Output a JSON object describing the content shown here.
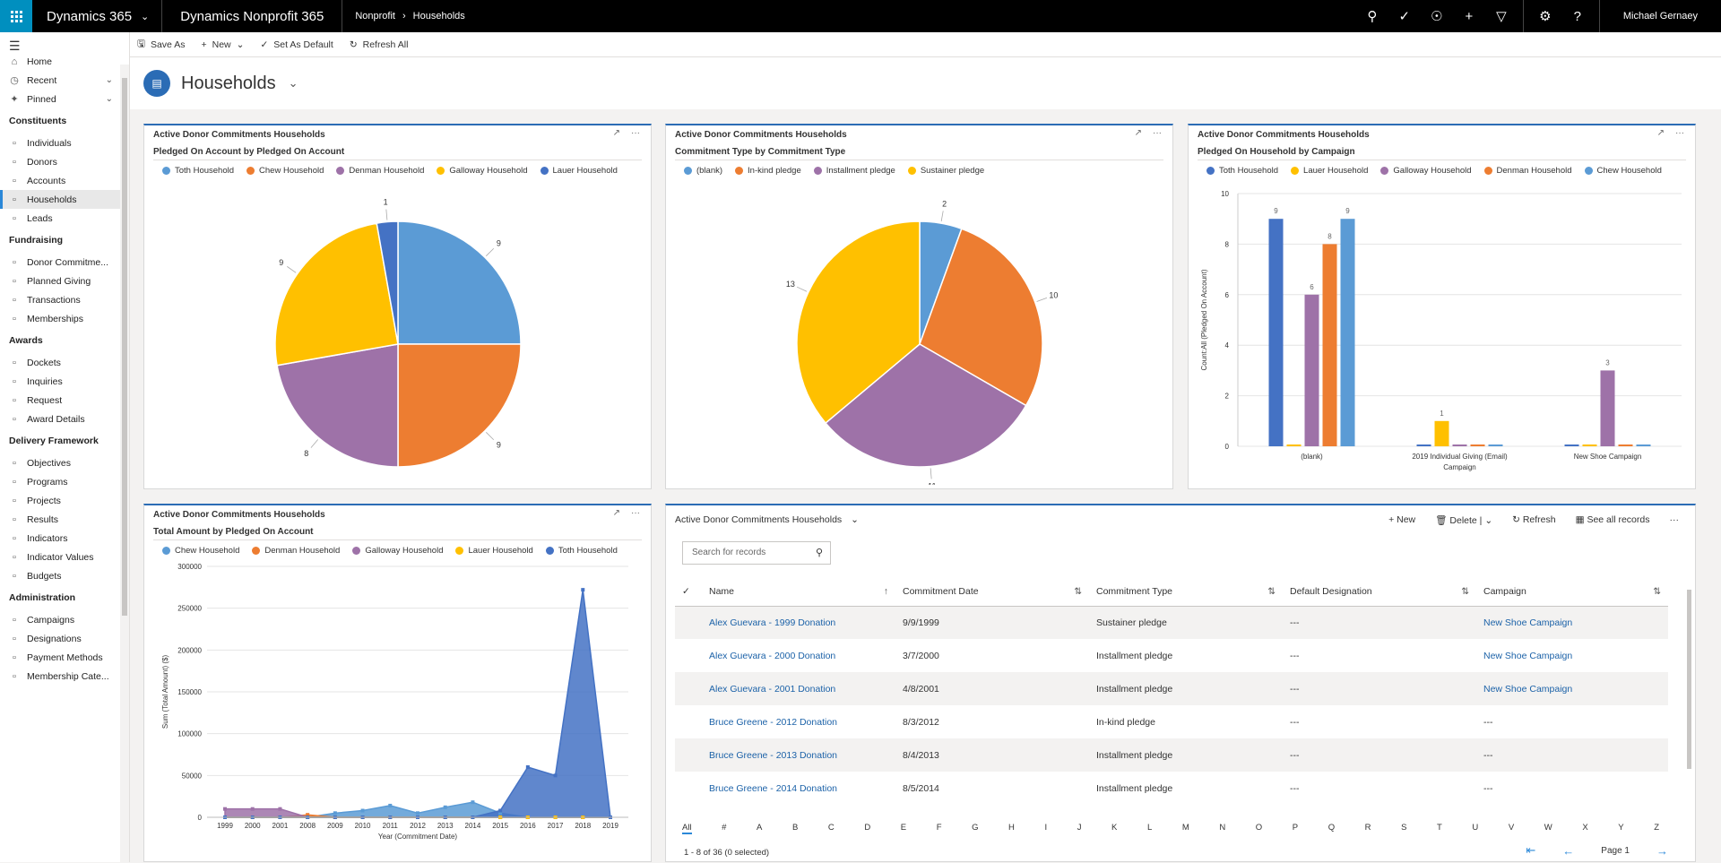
{
  "topbar": {
    "app_name": "Dynamics 365",
    "app_title": "Dynamics Nonprofit 365",
    "crumbs": [
      "Nonprofit",
      "Households"
    ],
    "user": "Michael Gernaey"
  },
  "commands": {
    "save_as": "Save As",
    "new": "New",
    "set_default": "Set As Default",
    "refresh_all": "Refresh All"
  },
  "header": {
    "title": "Households"
  },
  "sidebar": {
    "top": [
      {
        "label": "Home",
        "icon": "home-icon"
      },
      {
        "label": "Recent",
        "icon": "clock-icon",
        "chevron": true
      },
      {
        "label": "Pinned",
        "icon": "pin-icon",
        "chevron": true
      }
    ],
    "groups": [
      {
        "title": "Constituents",
        "items": [
          "Individuals",
          "Donors",
          "Accounts",
          "Households",
          "Leads"
        ]
      },
      {
        "title": "Fundraising",
        "items": [
          "Donor Commitme...",
          "Planned Giving",
          "Transactions",
          "Memberships"
        ]
      },
      {
        "title": "Awards",
        "items": [
          "Dockets",
          "Inquiries",
          "Request",
          "Award Details"
        ]
      },
      {
        "title": "Delivery Framework",
        "items": [
          "Objectives",
          "Programs",
          "Projects",
          "Results",
          "Indicators",
          "Indicator Values",
          "Budgets"
        ]
      },
      {
        "title": "Administration",
        "items": [
          "Campaigns",
          "Designations",
          "Payment Methods",
          "Membership Cate..."
        ]
      }
    ],
    "selected": "Households"
  },
  "charts": [
    {
      "panel_title": "Active Donor Commitments Households",
      "chart_data": {
        "type": "pie",
        "title": "Pledged On Account by Pledged On Account",
        "legend": [
          "Toth Household",
          "Chew Household",
          "Denman Household",
          "Galloway Household",
          "Lauer Household"
        ],
        "slices": [
          {
            "name": "Toth Household",
            "value": 9,
            "color": "#5b9bd5"
          },
          {
            "name": "Chew Household",
            "value": 9,
            "color": "#ed7d31"
          },
          {
            "name": "Denman Household",
            "value": 8,
            "color": "#9e72a8"
          },
          {
            "name": "Galloway Household",
            "value": 9,
            "color": "#ffc000"
          },
          {
            "name": "Lauer Household",
            "value": 1,
            "color": "#4472c4"
          }
        ]
      }
    },
    {
      "panel_title": "Active Donor Commitments Households",
      "chart_data": {
        "type": "pie",
        "title": "Commitment Type by Commitment Type",
        "legend": [
          "(blank)",
          "In-kind pledge",
          "Installment pledge",
          "Sustainer pledge"
        ],
        "slices": [
          {
            "name": "(blank)",
            "value": 2,
            "color": "#5b9bd5"
          },
          {
            "name": "In-kind pledge",
            "value": 10,
            "color": "#ed7d31"
          },
          {
            "name": "Installment pledge",
            "value": 11,
            "color": "#9e72a8"
          },
          {
            "name": "Sustainer pledge",
            "value": 13,
            "color": "#ffc000"
          }
        ]
      }
    },
    {
      "panel_title": "Active Donor Commitments Households",
      "chart_data": {
        "type": "bar",
        "title": "Pledged On Household by Campaign",
        "xlabel": "Campaign",
        "ylabel": "Count:All (Pledged On Account)",
        "ylim": [
          0,
          10
        ],
        "yticks": [
          0,
          2,
          4,
          6,
          8,
          10
        ],
        "categories": [
          "(blank)",
          "2019 Individual Giving (Email)",
          "New Shoe Campaign"
        ],
        "series": [
          {
            "name": "Toth Household",
            "color": "#4472c4",
            "values": [
              9,
              0,
              0
            ]
          },
          {
            "name": "Lauer Household",
            "color": "#ffc000",
            "values": [
              0,
              1,
              0
            ]
          },
          {
            "name": "Galloway Household",
            "color": "#9e72a8",
            "values": [
              6,
              0,
              3
            ]
          },
          {
            "name": "Denman Household",
            "color": "#ed7d31",
            "values": [
              8,
              0,
              0
            ]
          },
          {
            "name": "Chew Household",
            "color": "#5b9bd5",
            "values": [
              9,
              0,
              0
            ]
          }
        ]
      }
    },
    {
      "panel_title": "Active Donor Commitments Households",
      "chart_data": {
        "type": "area",
        "title": "Total Amount by Pledged On Account",
        "xlabel": "Year (Commitment Date)",
        "ylabel": "Sum (Total Amount) ($)",
        "ylim": [
          0,
          300000
        ],
        "yticks": [
          0,
          50000,
          100000,
          150000,
          200000,
          250000,
          300000
        ],
        "x": [
          "1999",
          "2000",
          "2001",
          "2008",
          "2009",
          "2010",
          "2011",
          "2012",
          "2013",
          "2014",
          "2015",
          "2016",
          "2017",
          "2018",
          "2019"
        ],
        "series": [
          {
            "name": "Chew Household",
            "color": "#5b9bd5",
            "values": [
              0,
              0,
              0,
              0,
              5000,
              8000,
              14000,
              5000,
              12000,
              18000,
              5000,
              0,
              0,
              0,
              0
            ]
          },
          {
            "name": "Denman Household",
            "color": "#ed7d31",
            "values": [
              0,
              0,
              0,
              3000,
              0,
              0,
              0,
              0,
              0,
              0,
              0,
              0,
              0,
              0,
              0
            ]
          },
          {
            "name": "Galloway Household",
            "color": "#9e72a8",
            "values": [
              10000,
              10000,
              10000,
              0,
              0,
              0,
              0,
              0,
              0,
              0,
              0,
              0,
              0,
              0,
              0
            ]
          },
          {
            "name": "Lauer Household",
            "color": "#ffc000",
            "values": [
              0,
              0,
              0,
              0,
              0,
              0,
              0,
              0,
              0,
              0,
              0,
              0,
              0,
              0,
              0
            ]
          },
          {
            "name": "Toth Household",
            "color": "#4472c4",
            "values": [
              0,
              0,
              0,
              0,
              0,
              0,
              0,
              0,
              0,
              0,
              8000,
              60000,
              50000,
              272000,
              0
            ]
          }
        ]
      }
    }
  ],
  "grid": {
    "title": "Active Donor Commitments Households",
    "actions": {
      "new": "New",
      "delete": "Delete",
      "refresh": "Refresh",
      "see_all": "See all records"
    },
    "search_placeholder": "Search for records",
    "columns": [
      "Name",
      "Commitment Date",
      "Commitment Type",
      "Default Designation",
      "Campaign"
    ],
    "rows": [
      {
        "name": "Alex Guevara - 1999 Donation",
        "date": "9/9/1999",
        "type": "Sustainer pledge",
        "designation": "---",
        "campaign": "New Shoe Campaign"
      },
      {
        "name": "Alex Guevara - 2000 Donation",
        "date": "3/7/2000",
        "type": "Installment pledge",
        "designation": "---",
        "campaign": "New Shoe Campaign"
      },
      {
        "name": "Alex Guevara - 2001 Donation",
        "date": "4/8/2001",
        "type": "Installment pledge",
        "designation": "---",
        "campaign": "New Shoe Campaign"
      },
      {
        "name": "Bruce Greene - 2012 Donation",
        "date": "8/3/2012",
        "type": "In-kind pledge",
        "designation": "---",
        "campaign": "---"
      },
      {
        "name": "Bruce Greene - 2013 Donation",
        "date": "8/4/2013",
        "type": "Installment pledge",
        "designation": "---",
        "campaign": "---"
      },
      {
        "name": "Bruce Greene - 2014 Donation",
        "date": "8/5/2014",
        "type": "Installment pledge",
        "designation": "---",
        "campaign": "---"
      }
    ],
    "alpha": [
      "All",
      "#",
      "A",
      "B",
      "C",
      "D",
      "E",
      "F",
      "G",
      "H",
      "I",
      "J",
      "K",
      "L",
      "M",
      "N",
      "O",
      "P",
      "Q",
      "R",
      "S",
      "T",
      "U",
      "V",
      "W",
      "X",
      "Y",
      "Z"
    ],
    "footer": "1 - 8 of 36 (0 selected)",
    "page": "Page 1"
  }
}
